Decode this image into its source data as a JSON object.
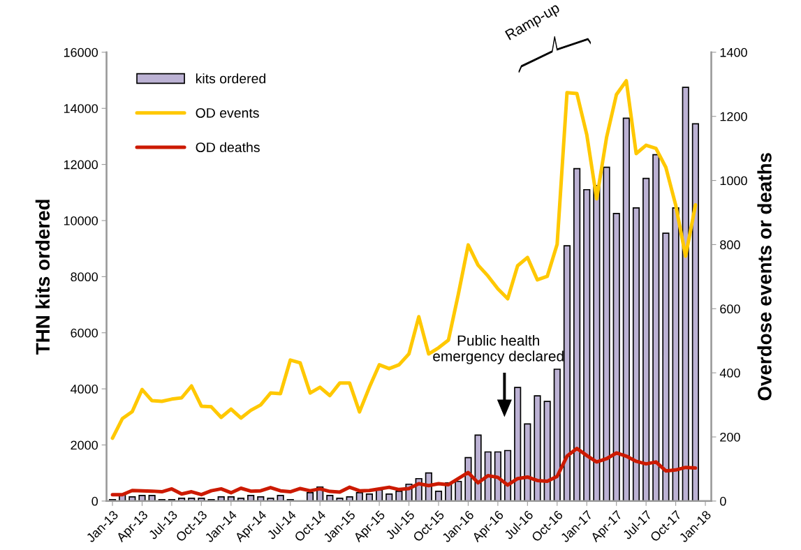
{
  "chart_data": {
    "type": "bar",
    "categories": [
      "Jan-13",
      null,
      null,
      "Apr-13",
      null,
      null,
      "Jul-13",
      null,
      null,
      "Oct-13",
      null,
      null,
      "Jan-14",
      null,
      null,
      "Apr-14",
      null,
      null,
      "Jul-14",
      null,
      null,
      "Oct-14",
      null,
      null,
      "Jan-15",
      null,
      null,
      "Apr-15",
      null,
      null,
      "Jul-15",
      null,
      null,
      "Oct-15",
      null,
      null,
      "Jan-16",
      null,
      null,
      "Apr-16",
      null,
      null,
      "Jul-16",
      null,
      null,
      "Oct-16",
      null,
      null,
      "Jan-17",
      null,
      null,
      "Apr-17",
      null,
      null,
      "Jul-17",
      null,
      null,
      "Oct-17",
      null,
      null,
      "Jan-18"
    ],
    "series": [
      {
        "name": "kits ordered",
        "color": "#bcb2d4",
        "values": [
          50,
          250,
          150,
          200,
          200,
          50,
          50,
          100,
          100,
          100,
          50,
          150,
          150,
          100,
          200,
          150,
          100,
          200,
          50,
          null,
          300,
          500,
          200,
          100,
          150,
          300,
          250,
          400,
          250,
          350,
          600,
          800,
          1000,
          350,
          650,
          700,
          1550,
          2350,
          1750,
          1750,
          1800,
          4050,
          2750,
          3750,
          3550,
          4700,
          9100,
          11850,
          11100,
          11250,
          11900,
          10250,
          13650,
          10450,
          11500,
          12350,
          9550,
          10450,
          14750,
          13450,
          null
        ]
      },
      {
        "name": "OD events",
        "type": "line",
        "axis": "y2",
        "color": "#ffc800",
        "values": [
          196,
          257,
          279,
          348,
          313,
          311,
          318,
          322,
          359,
          296,
          294,
          261,
          287,
          259,
          283,
          300,
          337,
          335,
          440,
          431,
          337,
          355,
          329,
          368,
          368,
          278,
          355,
          425,
          413,
          425,
          459,
          575,
          459,
          478,
          502,
          645,
          799,
          736,
          702,
          662,
          631,
          734,
          760,
          690,
          701,
          801,
          1274,
          1271,
          1143,
          943,
          1134,
          1268,
          1311,
          1084,
          1110,
          1100,
          1041,
          923,
          764,
          924,
          null
        ]
      },
      {
        "name": "OD deaths",
        "type": "line",
        "axis": "y2",
        "color": "#cc1a00",
        "values": [
          20,
          20,
          33,
          32,
          31,
          29,
          38,
          22,
          29,
          20,
          32,
          38,
          26,
          40,
          31,
          32,
          42,
          32,
          29,
          39,
          32,
          38,
          30,
          28,
          43,
          32,
          33,
          38,
          43,
          36,
          39,
          54,
          48,
          54,
          51,
          70,
          89,
          57,
          79,
          74,
          50,
          70,
          75,
          64,
          62,
          77,
          140,
          164,
          142,
          122,
          132,
          150,
          140,
          124,
          116,
          122,
          94,
          97,
          105,
          103,
          null
        ]
      }
    ],
    "ylabel": "THN kits ordered",
    "y2label": "Overdose events or deaths",
    "ylim": [
      0,
      16000
    ],
    "yticks": [
      0,
      2000,
      4000,
      6000,
      8000,
      10000,
      12000,
      14000,
      16000
    ],
    "y2lim": [
      0,
      1400
    ],
    "y2ticks": [
      0,
      200,
      400,
      600,
      800,
      1000,
      1200,
      1400
    ],
    "annotations": [
      "Public health\nemergency declared",
      "Ramp-up"
    ],
    "legend": "top left",
    "grid": false
  }
}
